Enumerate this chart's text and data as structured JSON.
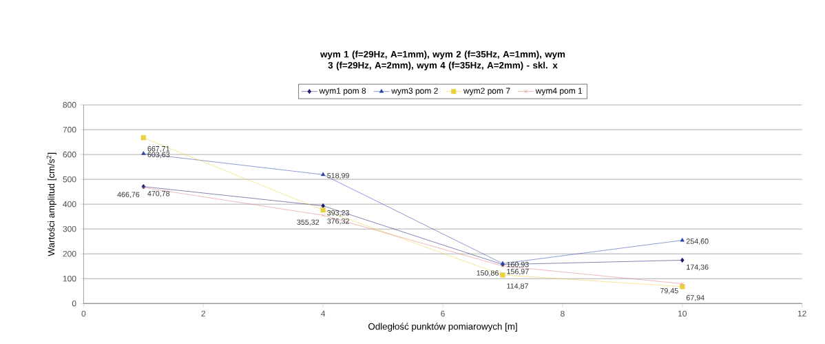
{
  "chart_data": {
    "type": "line",
    "title": "wym 1 (f=29Hz, A=1mm), wym 2 (f=35Hz, A=1mm), wym 3 (f=29Hz, A=2mm), wym 4 (f=35Hz, A=2mm) - skl. x",
    "xlabel": "Odległość punktów pomiarowych  [m]",
    "ylabel": "Wartości amplitud [cm/s$^{2}$]",
    "x": [
      1,
      4,
      7,
      10
    ],
    "series": [
      {
        "name": "wym1 pom 8",
        "color": "#1a1a6e",
        "marker": "diamond",
        "values": [
          470.78,
          393.23,
          156.97,
          174.36
        ],
        "value_labels": [
          "470,78",
          "393,23",
          "156,97",
          "174,36"
        ]
      },
      {
        "name": "wym3 pom 2",
        "color": "#2a44a8",
        "marker": "triangle",
        "values": [
          603.63,
          518.99,
          160.93,
          254.6
        ],
        "value_labels": [
          "603,63",
          "518,99",
          "160,93",
          "254,60"
        ]
      },
      {
        "name": "wym2 pom 7",
        "color": "#e8d040",
        "marker": "square",
        "values": [
          667.71,
          376.32,
          114.87,
          67.94
        ],
        "value_labels": [
          "667,71",
          "376,32",
          "114,87",
          "67,94"
        ]
      },
      {
        "name": "wym4 pom 1",
        "color": "#e07878",
        "marker": "cross",
        "values": [
          466.76,
          355.32,
          150.86,
          79.45
        ],
        "value_labels": [
          "466,76",
          "355,32",
          "150,86",
          "79,45"
        ]
      }
    ],
    "xlim": [
      0,
      12
    ],
    "xticks": [
      0,
      2,
      4,
      6,
      8,
      10,
      12
    ],
    "ylim": [
      0,
      800
    ],
    "yticks": [
      0,
      100,
      200,
      300,
      400,
      500,
      600,
      700,
      800
    ],
    "grid": "y",
    "legend": "top",
    "line_style": "solid"
  }
}
